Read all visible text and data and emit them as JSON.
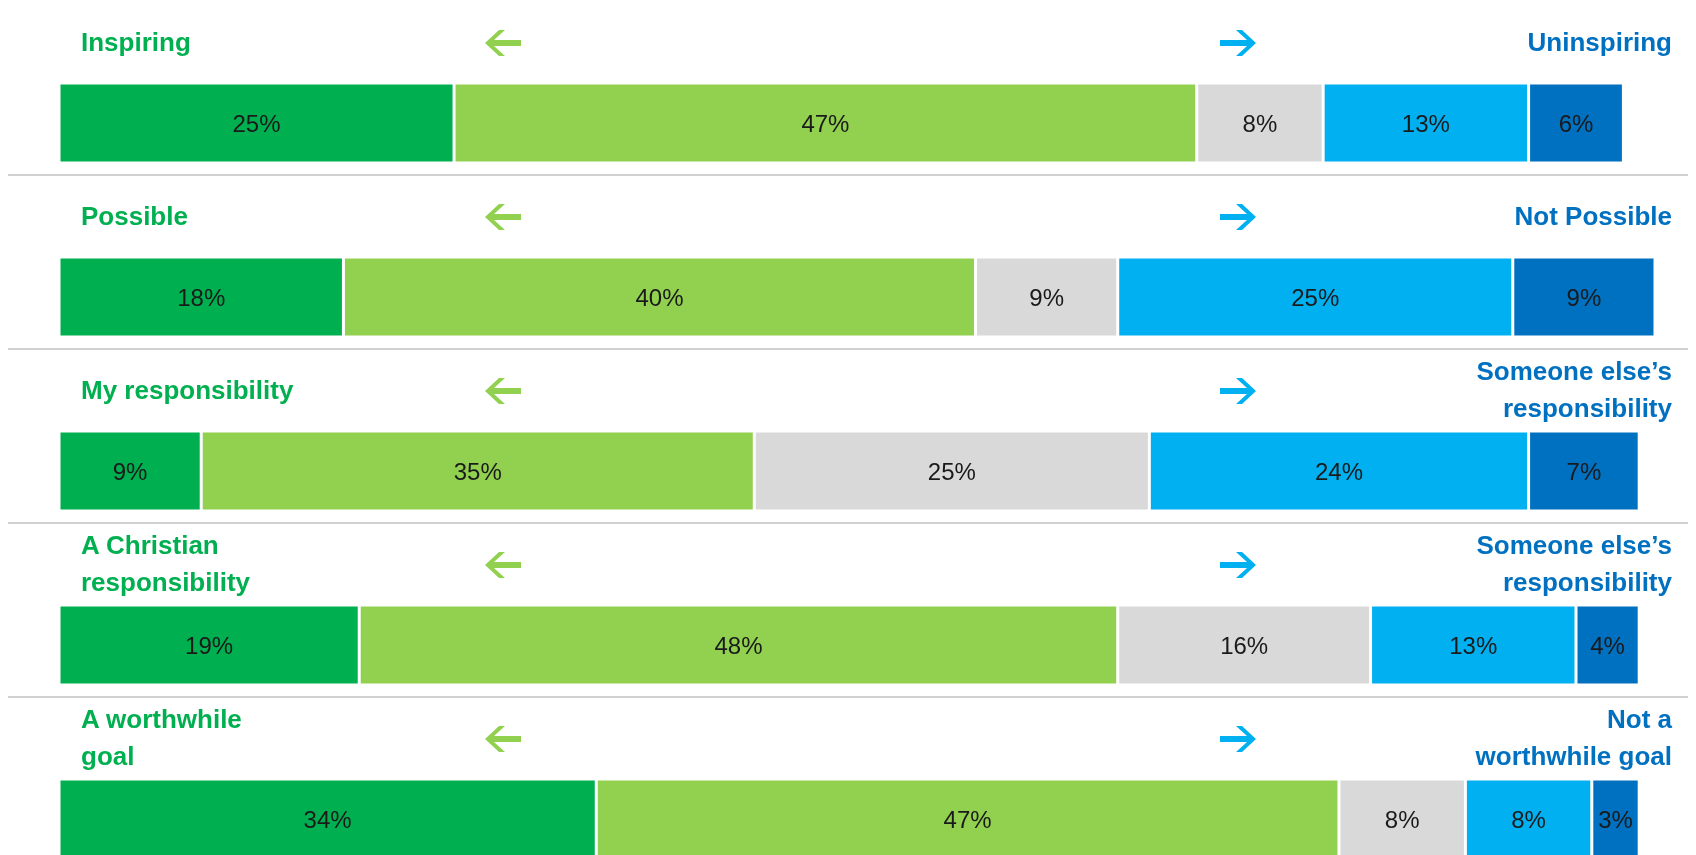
{
  "chart_data": {
    "type": "bar",
    "orientation": "horizontal",
    "stacked": true,
    "tick_labels": false,
    "xlim": [
      0,
      101
    ],
    "categories": [
      null,
      null,
      null,
      null,
      null
    ],
    "annotations": [
      "Inspiring",
      "Uninspiring",
      "Possible",
      "Not Possible",
      "My responsibility",
      "Someone else’s\nresponsibility",
      "A Christian\nresponsibility",
      "Someone else’s\nresponsibility",
      "A worthwhile\ngoal",
      "Not a\nworthwhile goal"
    ],
    "series": [
      {
        "color": "#00b050",
        "values": [
          25,
          18,
          9,
          19,
          34
        ],
        "value_labels": [
          "25%",
          "18%",
          "9%",
          "19%",
          "34%"
        ]
      },
      {
        "color": "#92d050",
        "values": [
          47,
          40,
          35,
          48,
          47
        ],
        "value_labels": [
          "47%",
          "40%",
          "35%",
          "48%",
          "47%"
        ]
      },
      {
        "color": "#d9d9d9",
        "values": [
          8,
          9,
          25,
          16,
          8
        ],
        "value_labels": [
          "8%",
          "9%",
          "25%",
          "16%",
          "8%"
        ]
      },
      {
        "color": "#00b0f0",
        "values": [
          13,
          25,
          24,
          13,
          8
        ],
        "value_labels": [
          "13%",
          "25%",
          "24%",
          "13%",
          "8%"
        ]
      },
      {
        "color": "#0070c0",
        "values": [
          6,
          9,
          7,
          4,
          3
        ],
        "value_labels": [
          "6%",
          "9%",
          "7%",
          "4%",
          "3%"
        ]
      }
    ]
  }
}
